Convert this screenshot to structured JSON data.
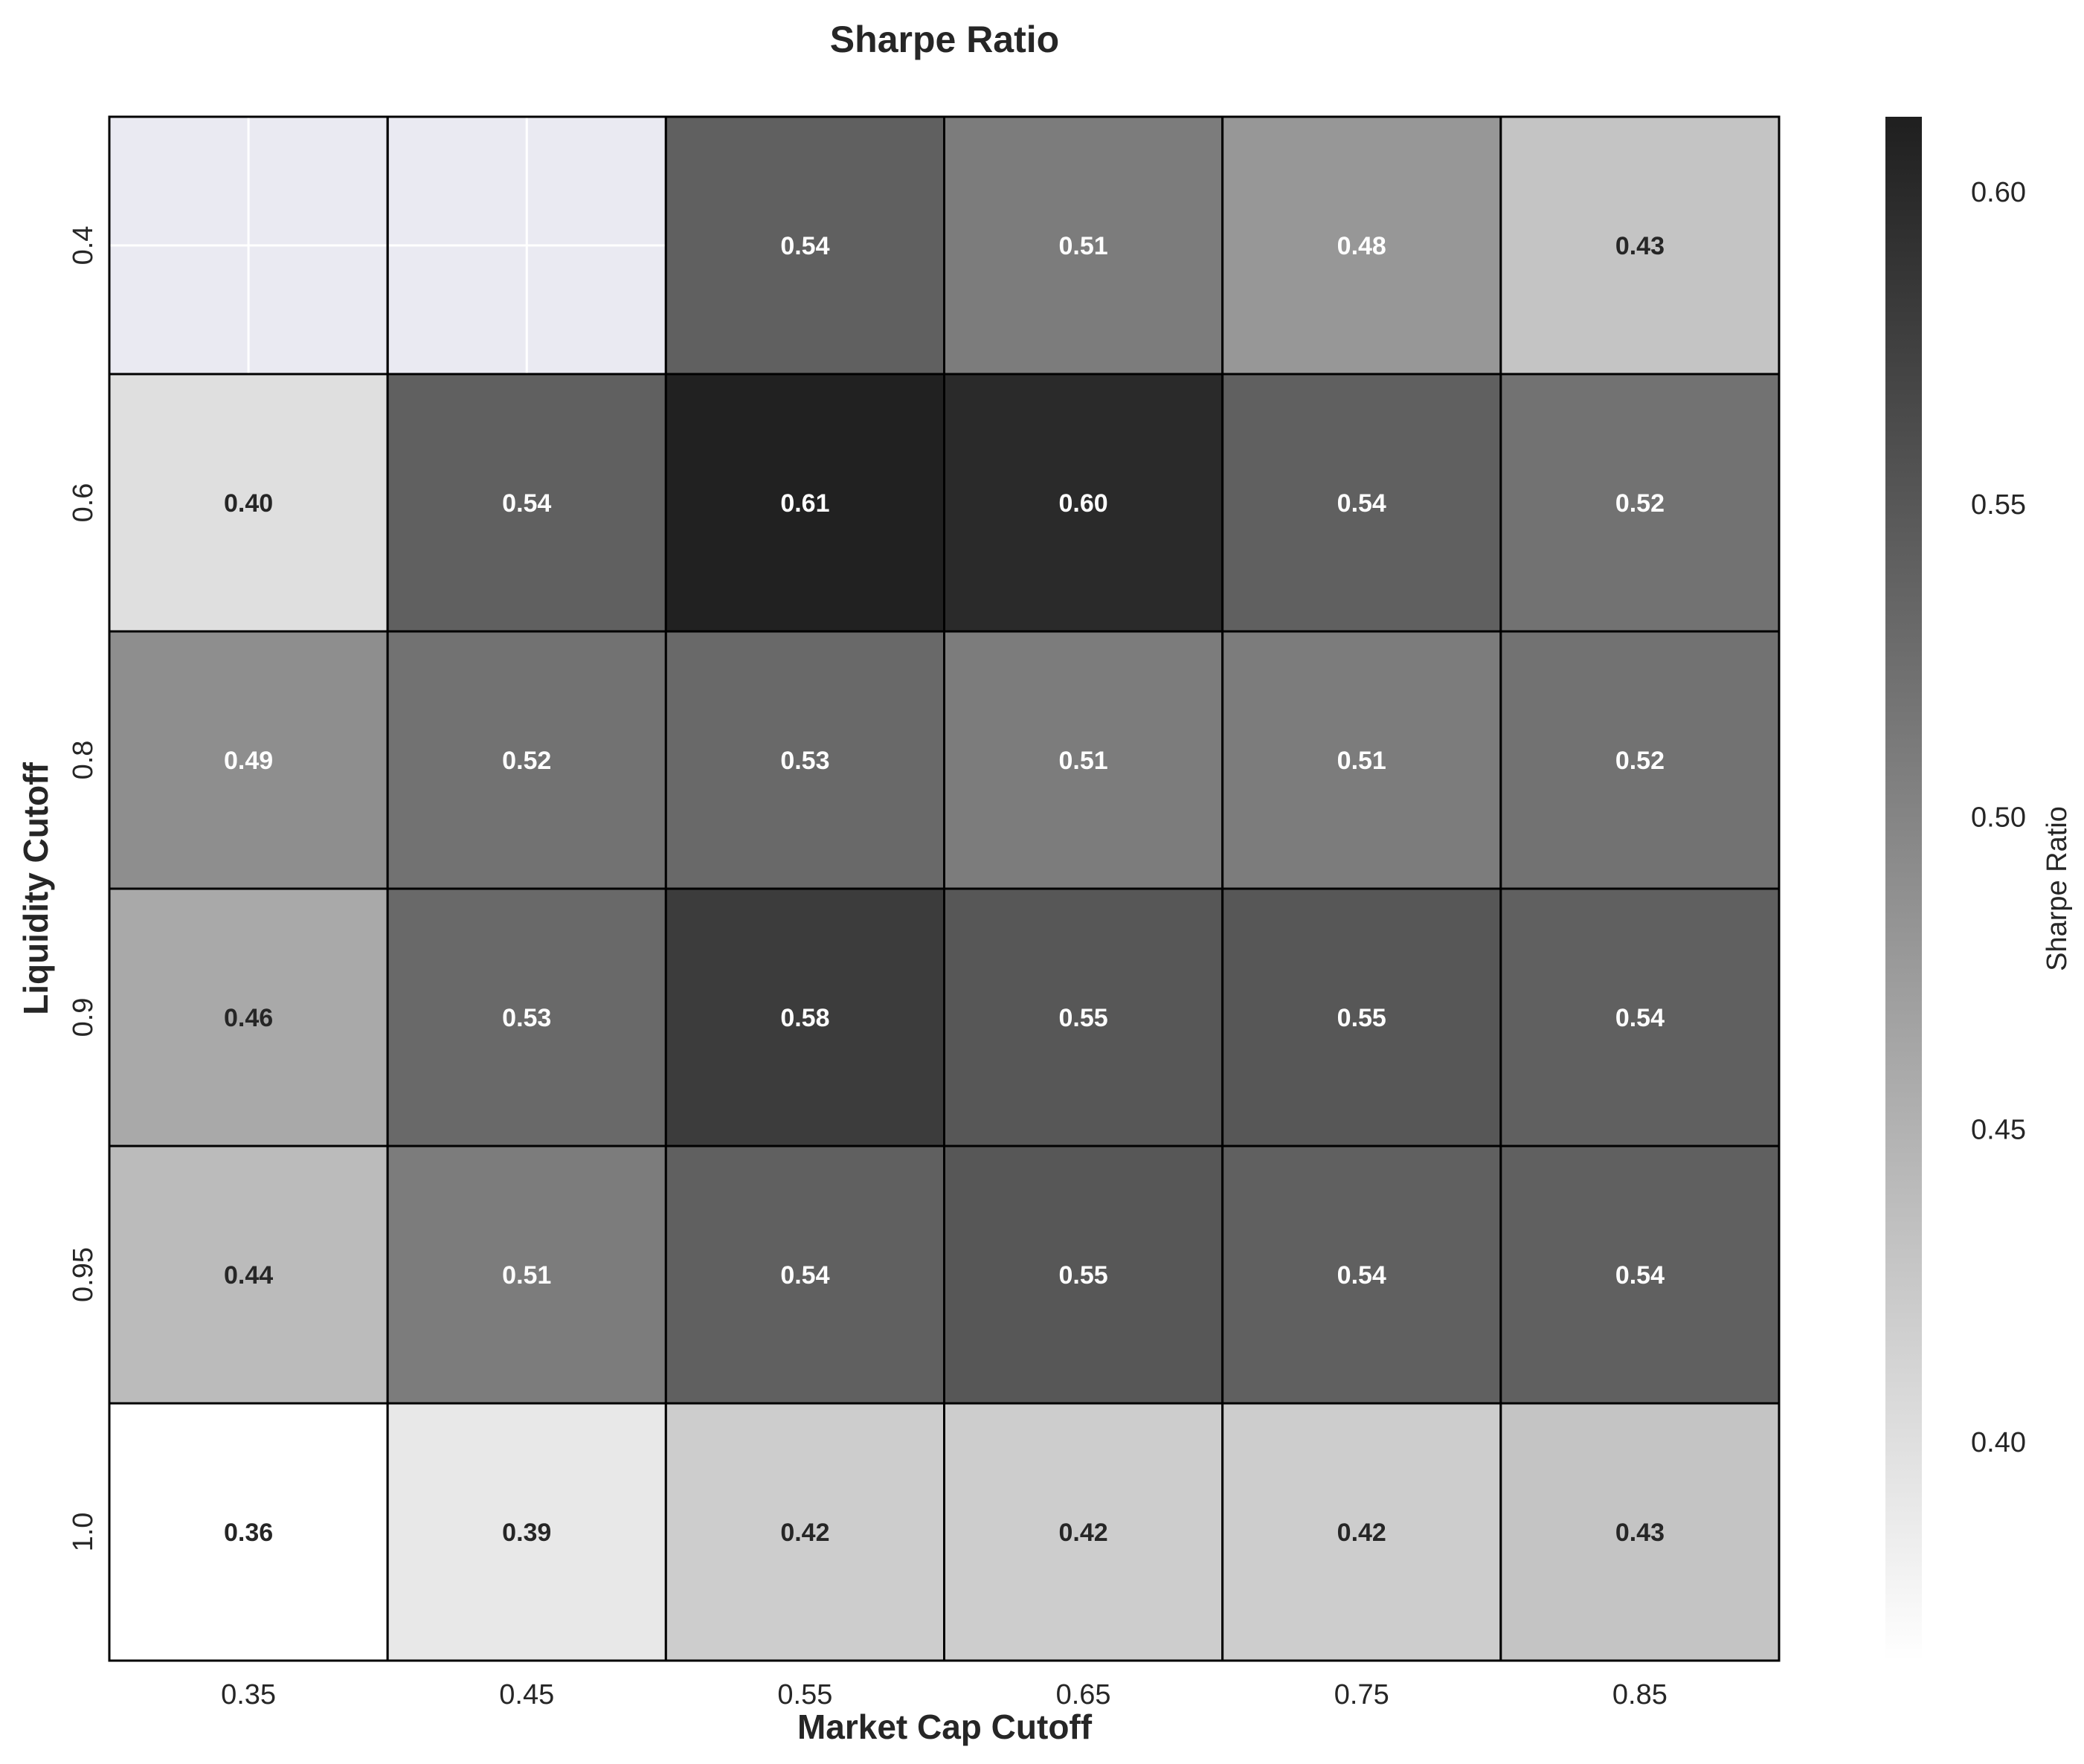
{
  "chart_data": {
    "type": "heatmap",
    "title": "Sharpe Ratio",
    "xlabel": "Market Cap Cutoff",
    "ylabel": "Liquidity Cutoff",
    "x_categories": [
      "0.35",
      "0.45",
      "0.55",
      "0.65",
      "0.75",
      "0.85"
    ],
    "y_categories": [
      "0.4",
      "0.6",
      "0.8",
      "0.9",
      "0.95",
      "1.0"
    ],
    "values": [
      [
        null,
        null,
        0.54,
        0.51,
        0.48,
        0.43
      ],
      [
        0.4,
        0.54,
        0.61,
        0.6,
        0.54,
        0.52
      ],
      [
        0.49,
        0.52,
        0.53,
        0.51,
        0.51,
        0.52
      ],
      [
        0.46,
        0.53,
        0.58,
        0.55,
        0.55,
        0.54
      ],
      [
        0.44,
        0.51,
        0.54,
        0.55,
        0.54,
        0.54
      ],
      [
        0.36,
        0.39,
        0.42,
        0.42,
        0.42,
        0.43
      ]
    ],
    "cell_labels": [
      [
        "",
        "",
        "0.54",
        "0.51",
        "0.48",
        "0.43"
      ],
      [
        "0.40",
        "0.54",
        "0.61",
        "0.60",
        "0.54",
        "0.52"
      ],
      [
        "0.49",
        "0.52",
        "0.53",
        "0.51",
        "0.51",
        "0.52"
      ],
      [
        "0.46",
        "0.53",
        "0.58",
        "0.55",
        "0.55",
        "0.54"
      ],
      [
        "0.44",
        "0.51",
        "0.54",
        "0.55",
        "0.54",
        "0.54"
      ],
      [
        "0.36",
        "0.39",
        "0.42",
        "0.42",
        "0.42",
        "0.43"
      ]
    ],
    "colorbar": {
      "label": "Sharpe Ratio",
      "range": [
        0.365,
        0.612
      ],
      "ticks": [
        0.4,
        0.45,
        0.5,
        0.55,
        0.6
      ],
      "tick_labels": [
        "0.40",
        "0.45",
        "0.50",
        "0.55",
        "0.60"
      ]
    },
    "colormap": {
      "low": "#ffffff",
      "high": "#1f1f1f"
    },
    "missing_color": "#eaeaf2",
    "grid": true
  }
}
